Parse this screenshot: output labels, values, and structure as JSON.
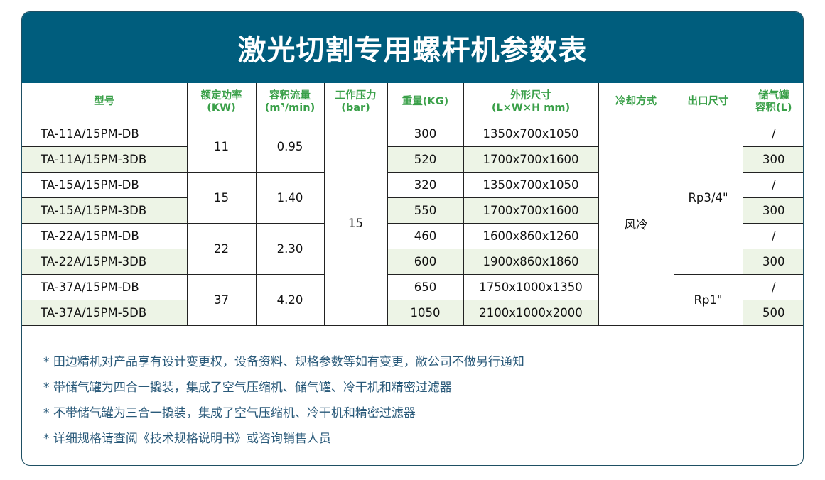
{
  "title": "激光切割专用螺杆机参数表",
  "headers": {
    "model": "型号",
    "power": [
      "额定功率",
      "(KW)"
    ],
    "flow": [
      "容积流量",
      "(m³/min)"
    ],
    "pressure": [
      "工作压力",
      "(bar)"
    ],
    "weight": "重量(KG)",
    "dims": [
      "外形尺寸",
      "(L×W×H mm)"
    ],
    "cooling": "冷却方式",
    "outlet": "出口尺寸",
    "tank": [
      "储气罐",
      "容积(L)"
    ]
  },
  "rows": [
    {
      "model": "TA-11A/15PM-DB",
      "weight": "300",
      "dims": "1350x700x1050",
      "tank": "/"
    },
    {
      "model": "TA-11A/15PM-3DB",
      "weight": "520",
      "dims": "1700x700x1600",
      "tank": "300"
    },
    {
      "model": "TA-15A/15PM-DB",
      "weight": "320",
      "dims": "1350x700x1050",
      "tank": "/"
    },
    {
      "model": "TA-15A/15PM-3DB",
      "weight": "550",
      "dims": "1700x700x1600",
      "tank": "300"
    },
    {
      "model": "TA-22A/15PM-DB",
      "weight": "460",
      "dims": "1600x860x1260",
      "tank": "/"
    },
    {
      "model": "TA-22A/15PM-3DB",
      "weight": "600",
      "dims": "1900x860x1860",
      "tank": "300"
    },
    {
      "model": "TA-37A/15PM-DB",
      "weight": "650",
      "dims": "1750x1000x1350",
      "tank": "/"
    },
    {
      "model": "TA-37A/15PM-5DB",
      "weight": "1050",
      "dims": "2100x1000x2000",
      "tank": "500"
    }
  ],
  "groups": [
    {
      "power": "11",
      "flow": "0.95"
    },
    {
      "power": "15",
      "flow": "1.40"
    },
    {
      "power": "22",
      "flow": "2.30"
    },
    {
      "power": "37",
      "flow": "4.20"
    }
  ],
  "pressure": "15",
  "cooling": "风冷",
  "outlets": [
    "Rp3/4\"",
    "Rp1\""
  ],
  "notes": [
    "* 田边精机对产品享有设计变更权，设备资料、规格参数等如有变更，敝公司不做另行通知",
    "* 带储气罐为四合一撬装，集成了空气压缩机、储气罐、冷干机和精密过滤器",
    "* 不带储气罐为三合一撬装，集成了空气压缩机、冷干机和精密过滤器",
    "* 详细规格请查阅《技术规格说明书》或咨询销售人员"
  ],
  "colors": {
    "banner": "#005d7d",
    "header_text": "#3aa049",
    "row_shade": "#edf4e6",
    "note_text": "#2a5a7a"
  }
}
